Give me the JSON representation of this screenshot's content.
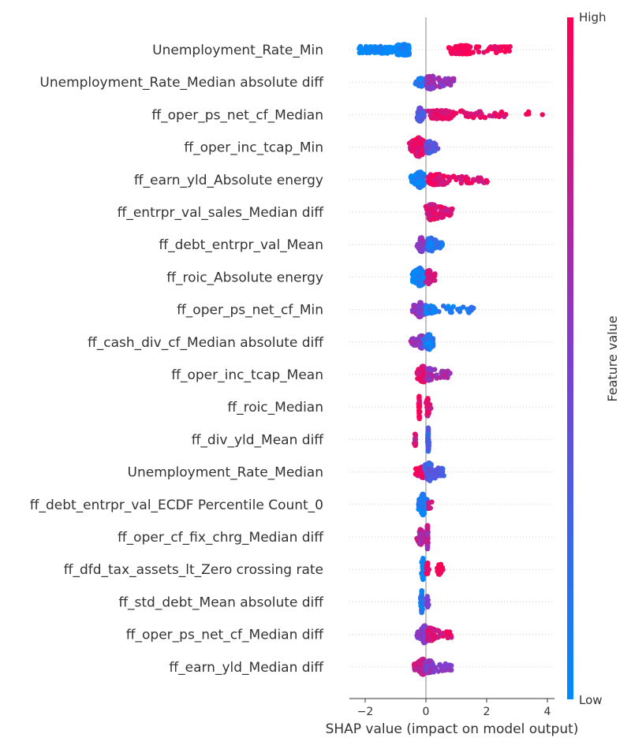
{
  "chart_data": {
    "type": "scatter",
    "subtype": "shap-beeswarm-summary",
    "xlabel": "SHAP value (impact on model output)",
    "xlim": [
      -2.5,
      4.3
    ],
    "xticks": [
      -2,
      0,
      2,
      4
    ],
    "xtick_labels": [
      "−2",
      "0",
      "2",
      "4"
    ],
    "colorbar": {
      "title": "Feature value",
      "high_label": "High",
      "low_label": "Low",
      "low_color": "#008bfb",
      "high_color": "#ff0052"
    },
    "features": [
      {
        "name": "Unemployment_Rate_Min",
        "clusters": [
          {
            "lo": -2.2,
            "hi": -0.55,
            "peak": -0.75,
            "w": 0.22,
            "c": 0.02,
            "n": 260
          },
          {
            "lo": 0.75,
            "hi": 2.8,
            "peak": 1.2,
            "w": 0.12,
            "c": 0.97,
            "n": 160
          }
        ]
      },
      {
        "name": "Unemployment_Rate_Median absolute diff",
        "clusters": [
          {
            "lo": -0.35,
            "hi": -0.05,
            "peak": -0.15,
            "w": 0.1,
            "c": 0.1,
            "n": 40
          },
          {
            "lo": 0.0,
            "hi": 0.95,
            "peak": 0.15,
            "w": 0.35,
            "c": 0.6,
            "n": 90
          }
        ]
      },
      {
        "name": "ff_oper_ps_net_cf_Median",
        "clusters": [
          {
            "lo": -0.3,
            "hi": -0.05,
            "peak": -0.2,
            "w": 0.35,
            "c": 0.35,
            "n": 90
          },
          {
            "lo": 0.0,
            "hi": 2.65,
            "peak": 0.5,
            "w": 0.1,
            "c": 0.9,
            "n": 150
          },
          {
            "lo": 3.0,
            "hi": 3.9,
            "peak": 3.3,
            "w": 0.0,
            "c": 1.0,
            "n": 4
          }
        ]
      },
      {
        "name": "ff_oper_inc_tcap_Min",
        "clusters": [
          {
            "lo": -0.55,
            "hi": 0.05,
            "peak": -0.25,
            "w": 0.6,
            "c": 0.9,
            "n": 200
          },
          {
            "lo": 0.0,
            "hi": 0.45,
            "peak": 0.1,
            "w": 0.3,
            "c": 0.35,
            "n": 60
          }
        ]
      },
      {
        "name": "ff_earn_yld_Absolute energy",
        "clusters": [
          {
            "lo": -0.5,
            "hi": -0.05,
            "peak": -0.2,
            "w": 0.45,
            "c": 0.05,
            "n": 160
          },
          {
            "lo": 0.05,
            "hi": 2.05,
            "peak": 0.35,
            "w": 0.2,
            "c": 0.9,
            "n": 140
          }
        ]
      },
      {
        "name": "ff_entrpr_val_sales_Median diff",
        "clusters": [
          {
            "lo": -0.05,
            "hi": 0.9,
            "peak": 0.2,
            "w": 0.45,
            "c": 0.85,
            "n": 150
          }
        ]
      },
      {
        "name": "ff_debt_entrpr_val_Mean",
        "clusters": [
          {
            "lo": -0.3,
            "hi": 0.05,
            "peak": -0.15,
            "w": 0.4,
            "c": 0.55,
            "n": 90
          },
          {
            "lo": 0.0,
            "hi": 0.55,
            "peak": 0.15,
            "w": 0.35,
            "c": 0.15,
            "n": 80
          }
        ]
      },
      {
        "name": "ff_roic_Absolute energy",
        "clusters": [
          {
            "lo": -0.45,
            "hi": 0.05,
            "peak": -0.2,
            "w": 0.55,
            "c": 0.1,
            "n": 180
          },
          {
            "lo": 0.0,
            "hi": 0.3,
            "peak": 0.1,
            "w": 0.35,
            "c": 0.85,
            "n": 70
          }
        ]
      },
      {
        "name": "ff_oper_ps_net_cf_Min",
        "clusters": [
          {
            "lo": -0.45,
            "hi": 0.0,
            "peak": -0.2,
            "w": 0.4,
            "c": 0.6,
            "n": 120
          },
          {
            "lo": 0.0,
            "hi": 1.65,
            "peak": 0.05,
            "w": 0.08,
            "c": 0.1,
            "n": 120
          }
        ]
      },
      {
        "name": "ff_cash_div_cf_Median absolute diff",
        "clusters": [
          {
            "lo": -0.5,
            "hi": -0.05,
            "peak": -0.15,
            "w": 0.3,
            "c": 0.6,
            "n": 80
          },
          {
            "lo": -0.1,
            "hi": 0.25,
            "peak": 0.1,
            "w": 0.45,
            "c": 0.1,
            "n": 90
          }
        ]
      },
      {
        "name": "ff_oper_inc_tcap_Mean",
        "clusters": [
          {
            "lo": -0.3,
            "hi": 0.1,
            "peak": -0.1,
            "w": 0.5,
            "c": 0.92,
            "n": 130
          },
          {
            "lo": 0.05,
            "hi": 0.8,
            "peak": 0.1,
            "w": 0.3,
            "c": 0.65,
            "n": 80
          }
        ]
      },
      {
        "name": "ff_roic_Median",
        "clusters": [
          {
            "lo": -0.25,
            "hi": -0.2,
            "peak": -0.22,
            "w": 0.9,
            "c": 0.95,
            "n": 40
          },
          {
            "lo": 0.0,
            "hi": 0.18,
            "peak": 0.05,
            "w": 0.6,
            "c": 0.85,
            "n": 40
          }
        ]
      },
      {
        "name": "ff_div_yld_Mean diff",
        "clusters": [
          {
            "lo": -0.4,
            "hi": -0.3,
            "peak": -0.35,
            "w": 0.35,
            "c": 0.85,
            "n": 16
          },
          {
            "lo": 0.05,
            "hi": 0.1,
            "peak": 0.08,
            "w": 0.9,
            "c": 0.3,
            "n": 40
          }
        ]
      },
      {
        "name": "Unemployment_Rate_Median",
        "clusters": [
          {
            "lo": -0.35,
            "hi": 0.0,
            "peak": -0.1,
            "w": 0.25,
            "c": 0.9,
            "n": 70
          },
          {
            "lo": -0.05,
            "hi": 0.6,
            "peak": 0.1,
            "w": 0.55,
            "c": 0.3,
            "n": 120
          }
        ]
      },
      {
        "name": "ff_debt_entrpr_val_ECDF Percentile Count_0",
        "clusters": [
          {
            "lo": -0.25,
            "hi": 0.05,
            "peak": -0.1,
            "w": 0.7,
            "c": 0.1,
            "n": 110
          },
          {
            "lo": 0.05,
            "hi": 0.2,
            "peak": 0.1,
            "w": 0.15,
            "c": 0.9,
            "n": 8
          }
        ]
      },
      {
        "name": "ff_oper_cf_fix_chrg_Median diff",
        "clusters": [
          {
            "lo": -0.3,
            "hi": -0.05,
            "peak": -0.18,
            "w": 0.45,
            "c": 0.75,
            "n": 50
          },
          {
            "lo": 0.0,
            "hi": 0.08,
            "peak": 0.05,
            "w": 0.9,
            "c": 0.7,
            "n": 50
          }
        ]
      },
      {
        "name": "ff_dfd_tax_assets_lt_Zero crossing rate",
        "clusters": [
          {
            "lo": -0.15,
            "hi": 0.0,
            "peak": -0.1,
            "w": 0.8,
            "c": 0.05,
            "n": 50
          },
          {
            "lo": 0.0,
            "hi": 0.1,
            "peak": 0.05,
            "w": 0.4,
            "c": 0.9,
            "n": 20
          },
          {
            "lo": 0.3,
            "hi": 0.65,
            "peak": 0.45,
            "w": 0.25,
            "c": 1.0,
            "n": 20
          }
        ]
      },
      {
        "name": "ff_std_debt_Mean absolute diff",
        "clusters": [
          {
            "lo": -0.18,
            "hi": -0.1,
            "peak": -0.14,
            "w": 0.9,
            "c": 0.1,
            "n": 50
          },
          {
            "lo": 0.02,
            "hi": 0.1,
            "peak": 0.05,
            "w": 0.3,
            "c": 0.55,
            "n": 20
          }
        ]
      },
      {
        "name": "ff_oper_ps_net_cf_Median diff",
        "clusters": [
          {
            "lo": -0.3,
            "hi": 0.05,
            "peak": -0.05,
            "w": 0.55,
            "c": 0.55,
            "n": 110
          },
          {
            "lo": 0.05,
            "hi": 0.85,
            "peak": 0.15,
            "w": 0.3,
            "c": 0.85,
            "n": 100
          }
        ]
      },
      {
        "name": "ff_earn_yld_Median diff",
        "clusters": [
          {
            "lo": -0.4,
            "hi": 0.0,
            "peak": -0.1,
            "w": 0.45,
            "c": 0.8,
            "n": 100
          },
          {
            "lo": 0.0,
            "hi": 0.9,
            "peak": 0.1,
            "w": 0.3,
            "c": 0.55,
            "n": 100
          }
        ]
      }
    ]
  }
}
